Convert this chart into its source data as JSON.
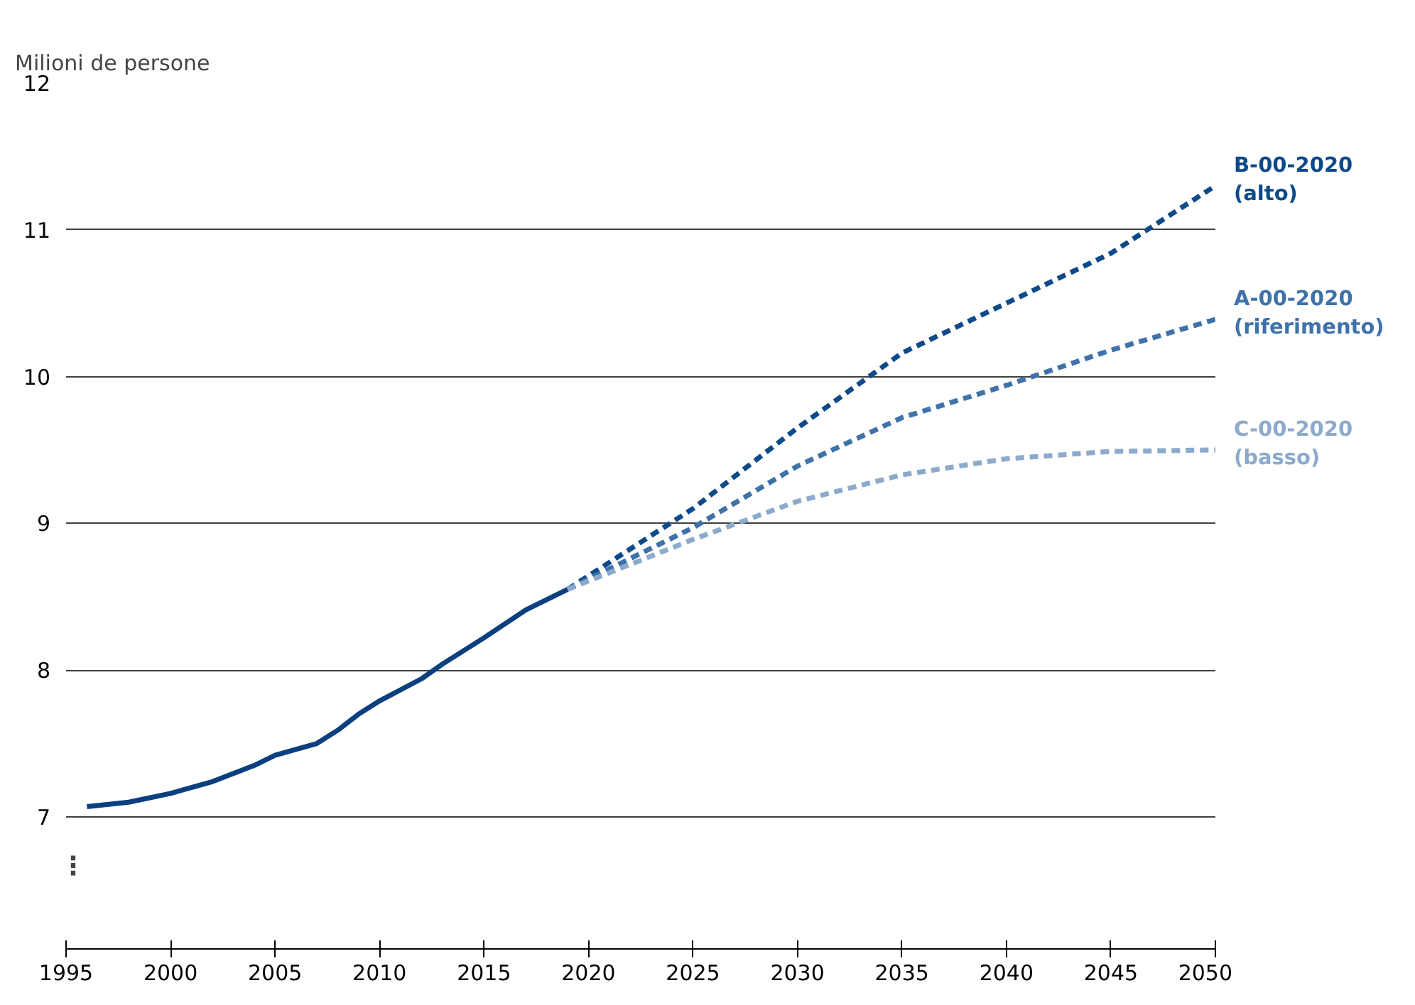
{
  "chart_data": {
    "type": "line",
    "ylabel": "Milioni de persone",
    "xlim": [
      1995,
      2050
    ],
    "xticks": [
      1995,
      2000,
      2005,
      2010,
      2015,
      2020,
      2025,
      2030,
      2035,
      2040,
      2045,
      2050
    ],
    "ylim": [
      6.1,
      12
    ],
    "yticks": [
      7,
      8,
      9,
      10,
      11,
      12
    ],
    "grid": "y",
    "annotations": [
      "⋮"
    ],
    "series": [
      {
        "color": "#0a3f80",
        "line_style": "solid",
        "x": [
          1996,
          1998,
          2000,
          2002,
          2004,
          2005,
          2007,
          2008,
          2009,
          2010,
          2012,
          2013,
          2015,
          2017,
          2019
        ],
        "values": [
          7.07,
          7.1,
          7.16,
          7.24,
          7.35,
          7.42,
          7.5,
          7.59,
          7.7,
          7.79,
          7.94,
          8.04,
          8.22,
          8.41,
          8.55
        ]
      },
      {
        "name": "B-00-2020\n(alto)",
        "color": "#0d4a8a",
        "line_style": "dashed",
        "x": [
          2019,
          2025,
          2030,
          2035,
          2040,
          2045,
          2050
        ],
        "values": [
          8.55,
          9.1,
          9.65,
          10.16,
          10.5,
          10.84,
          11.3
        ]
      },
      {
        "name": "A-00-2020\n(riferimento)",
        "color": "#3f72a8",
        "line_style": "dashed",
        "x": [
          2019,
          2025,
          2030,
          2035,
          2040,
          2045,
          2050
        ],
        "values": [
          8.55,
          8.97,
          9.39,
          9.72,
          9.94,
          10.18,
          10.39
        ]
      },
      {
        "name": "C-00-2020\n(basso)",
        "color": "#8caacb",
        "line_style": "dashed",
        "x": [
          2019,
          2025,
          2030,
          2035,
          2040,
          2045,
          2050
        ],
        "values": [
          8.55,
          8.89,
          9.15,
          9.33,
          9.44,
          9.49,
          9.5
        ]
      }
    ]
  }
}
